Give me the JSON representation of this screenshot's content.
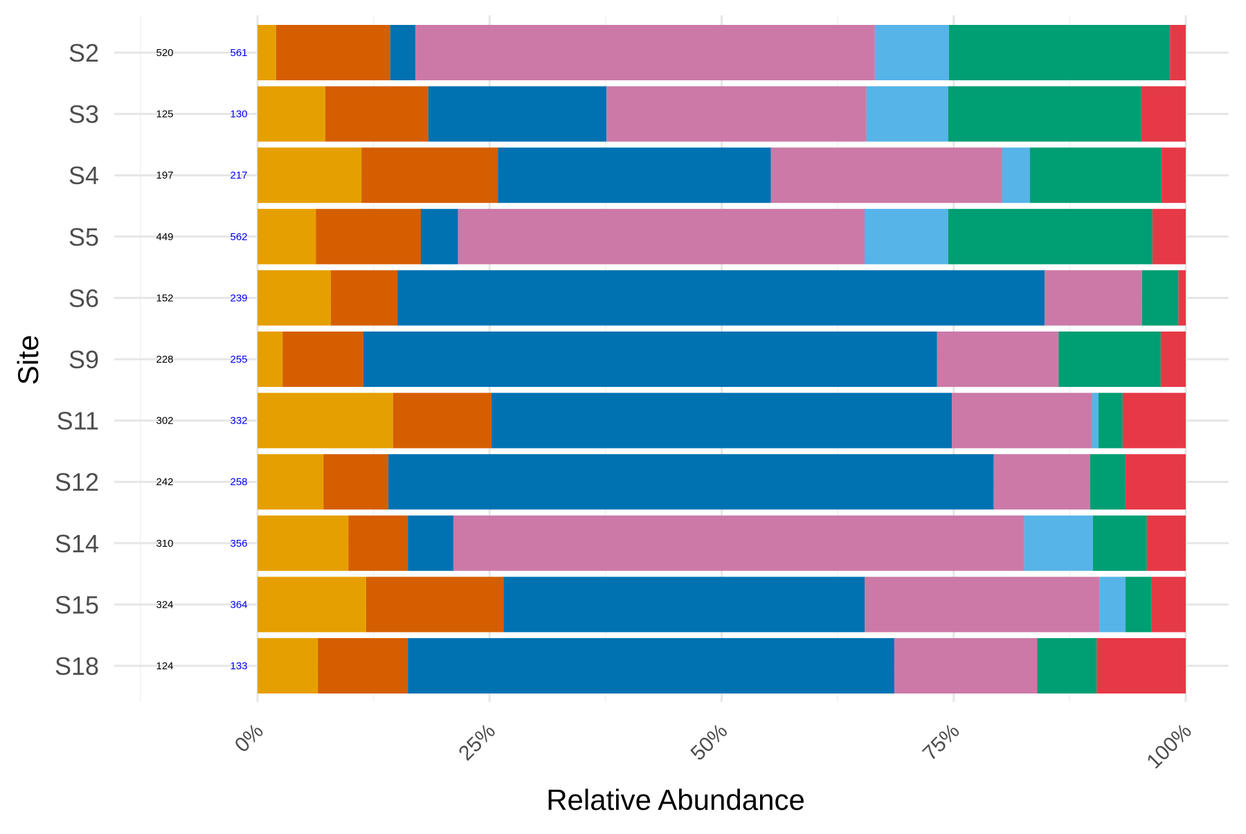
{
  "chart_data": {
    "type": "bar",
    "orientation": "horizontal",
    "stacked": true,
    "xlabel": "Relative Abundance",
    "ylabel": "Site",
    "xlim": [
      0,
      1
    ],
    "xticks": [
      "0%",
      "25%",
      "50%",
      "75%",
      "100%"
    ],
    "xtick_values": [
      0,
      0.25,
      0.5,
      0.75,
      1.0
    ],
    "grid": true,
    "legend": "none",
    "count_label_colors": [
      "#000000",
      "#0000ff"
    ],
    "categories": [
      "S2",
      "S3",
      "S4",
      "S5",
      "S6",
      "S9",
      "S11",
      "S12",
      "S14",
      "S15",
      "S18"
    ],
    "counts_a": [
      "520",
      "125",
      "197",
      "449",
      "152",
      "228",
      "302",
      "242",
      "310",
      "324",
      "124"
    ],
    "counts_b": [
      "561",
      "130",
      "217",
      "562",
      "239",
      "255",
      "332",
      "258",
      "356",
      "364",
      "133"
    ],
    "series": [
      {
        "color": "#E69F00",
        "values": [
          0.02,
          0.073,
          0.112,
          0.063,
          0.079,
          0.027,
          0.146,
          0.071,
          0.098,
          0.117,
          0.065
        ]
      },
      {
        "color": "#D55E00",
        "values": [
          0.123,
          0.111,
          0.147,
          0.113,
          0.072,
          0.087,
          0.106,
          0.07,
          0.064,
          0.148,
          0.097
        ]
      },
      {
        "color": "#0072B2",
        "values": [
          0.027,
          0.192,
          0.294,
          0.04,
          0.697,
          0.618,
          0.496,
          0.652,
          0.049,
          0.389,
          0.524
        ]
      },
      {
        "color": "#CC79A7",
        "values": [
          0.495,
          0.28,
          0.249,
          0.438,
          0.105,
          0.131,
          0.151,
          0.104,
          0.615,
          0.253,
          0.154
        ]
      },
      {
        "color": "#56B4E9",
        "values": [
          0.08,
          0.088,
          0.03,
          0.09,
          0.0,
          0.0,
          0.007,
          0.0,
          0.074,
          0.028,
          0.0
        ]
      },
      {
        "color": "#009E73",
        "values": [
          0.238,
          0.208,
          0.142,
          0.22,
          0.039,
          0.11,
          0.026,
          0.038,
          0.058,
          0.028,
          0.064
        ]
      },
      {
        "color": "#E63946",
        "values": [
          0.017,
          0.048,
          0.026,
          0.036,
          0.008,
          0.027,
          0.068,
          0.065,
          0.042,
          0.037,
          0.096
        ]
      }
    ]
  }
}
